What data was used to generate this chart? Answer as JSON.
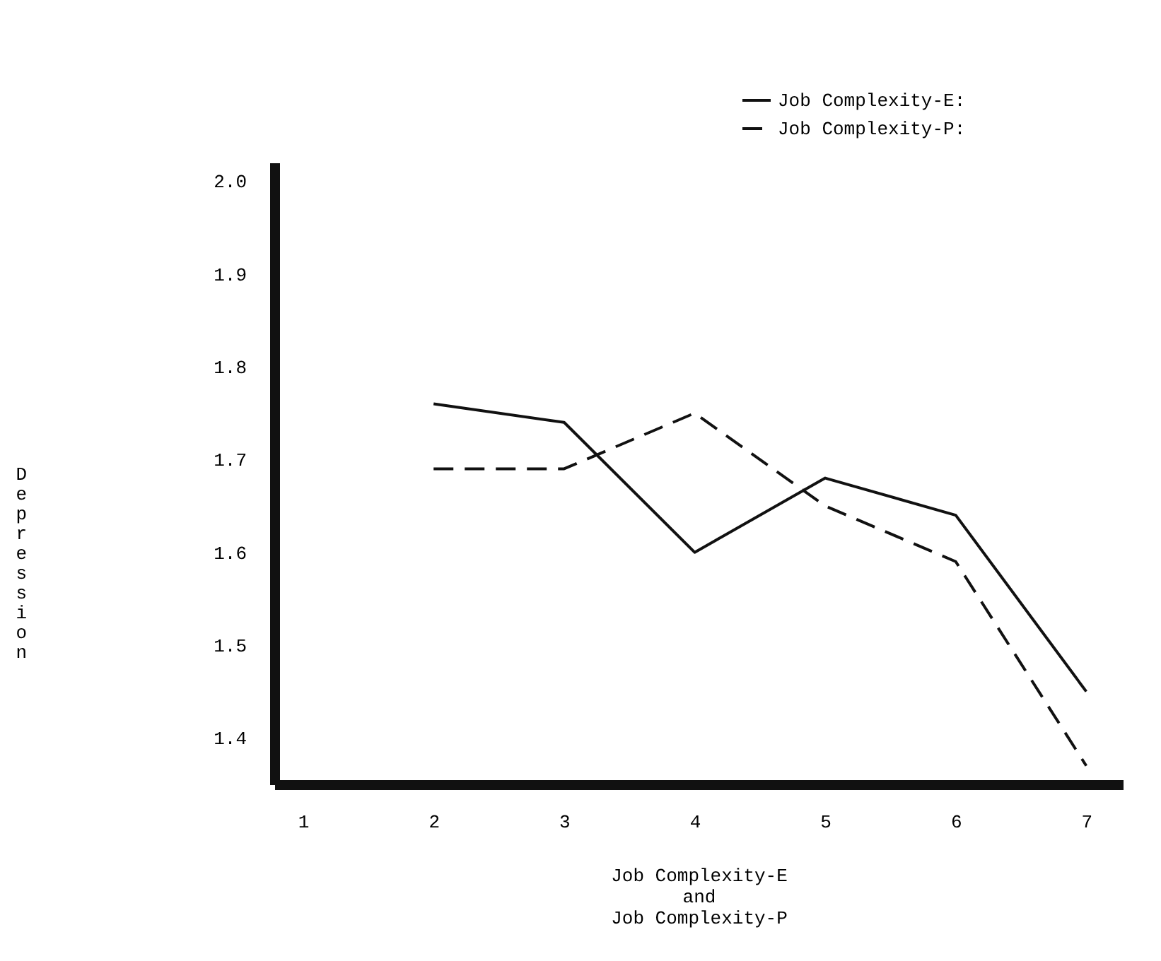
{
  "chart_data": {
    "type": "line",
    "xlabel": "Job Complexity-E\nand\nJob Complexity-P",
    "ylabel": "Depression",
    "x": [
      2,
      3,
      4,
      5,
      6,
      7
    ],
    "series": [
      {
        "name": "Job Complexity-E:",
        "color": "#111111",
        "line_style": "solid",
        "values": [
          1.76,
          1.74,
          1.6,
          1.68,
          1.64,
          1.45
        ]
      },
      {
        "name": "Job Complexity-P:",
        "color": "#111111",
        "line_style": "dashed",
        "values": [
          1.69,
          1.69,
          1.75,
          1.65,
          1.59,
          1.37
        ]
      }
    ],
    "xlim": [
      0.78,
      7.28
    ],
    "xticks": [
      1,
      2,
      3,
      4,
      5,
      6,
      7
    ],
    "ylim": [
      1.35,
      2.02
    ],
    "yticks": [
      {
        "value": 2.0,
        "label": "2.0"
      },
      1.9,
      1.8,
      1.7,
      1.6,
      1.5,
      1.4
    ],
    "grid": false,
    "legend": "top right",
    "marker": "none"
  }
}
